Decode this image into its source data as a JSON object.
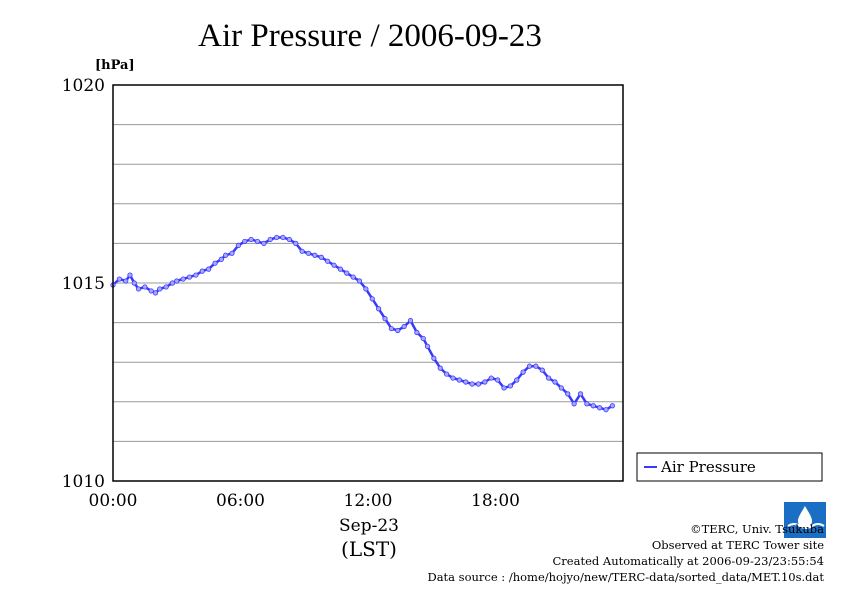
{
  "chart_data": {
    "type": "line",
    "title": "Air Pressure / 2006-09-23",
    "ylabel": "[hPa]",
    "xlabel": "Sep-23",
    "xlabel2": "(LST)",
    "ylim": [
      1010,
      1020
    ],
    "xlim": [
      0,
      24
    ],
    "yticks": [
      "1010",
      "1015",
      "1020"
    ],
    "xticks": [
      {
        "x": 0,
        "label": "00:00"
      },
      {
        "x": 6,
        "label": "06:00"
      },
      {
        "x": 12,
        "label": "12:00"
      },
      {
        "x": 18,
        "label": "18:00"
      }
    ],
    "grid": true,
    "legend_position": "right",
    "series": [
      {
        "name": "Air Pressure",
        "color": "#3a3aff",
        "x": [
          0.0,
          0.3,
          0.6,
          0.8,
          1.0,
          1.2,
          1.5,
          1.8,
          2.0,
          2.2,
          2.5,
          2.8,
          3.0,
          3.3,
          3.6,
          3.9,
          4.2,
          4.5,
          4.8,
          5.1,
          5.3,
          5.6,
          5.9,
          6.2,
          6.5,
          6.8,
          7.1,
          7.4,
          7.7,
          8.0,
          8.3,
          8.6,
          8.9,
          9.2,
          9.5,
          9.8,
          10.1,
          10.4,
          10.7,
          11.0,
          11.3,
          11.6,
          11.9,
          12.2,
          12.5,
          12.8,
          13.1,
          13.4,
          13.7,
          14.0,
          14.3,
          14.6,
          14.8,
          15.1,
          15.4,
          15.7,
          16.0,
          16.3,
          16.6,
          16.9,
          17.2,
          17.5,
          17.8,
          18.1,
          18.4,
          18.7,
          19.0,
          19.3,
          19.6,
          19.9,
          20.2,
          20.5,
          20.8,
          21.1,
          21.4,
          21.7,
          22.0,
          22.3,
          22.6,
          22.9,
          23.2,
          23.5
        ],
        "values": [
          1014.95,
          1015.1,
          1015.05,
          1015.2,
          1015.0,
          1014.85,
          1014.9,
          1014.8,
          1014.75,
          1014.85,
          1014.9,
          1015.0,
          1015.05,
          1015.1,
          1015.15,
          1015.2,
          1015.3,
          1015.35,
          1015.5,
          1015.6,
          1015.7,
          1015.75,
          1015.95,
          1016.05,
          1016.1,
          1016.05,
          1016.0,
          1016.1,
          1016.15,
          1016.15,
          1016.1,
          1016.0,
          1015.8,
          1015.75,
          1015.7,
          1015.65,
          1015.55,
          1015.45,
          1015.35,
          1015.25,
          1015.15,
          1015.05,
          1014.85,
          1014.6,
          1014.35,
          1014.1,
          1013.85,
          1013.8,
          1013.9,
          1014.05,
          1013.75,
          1013.6,
          1013.4,
          1013.1,
          1012.85,
          1012.7,
          1012.6,
          1012.55,
          1012.5,
          1012.45,
          1012.45,
          1012.5,
          1012.6,
          1012.55,
          1012.35,
          1012.4,
          1012.55,
          1012.75,
          1012.9,
          1012.9,
          1012.8,
          1012.6,
          1012.5,
          1012.35,
          1012.2,
          1011.95,
          1012.2,
          1011.95,
          1011.9,
          1011.85,
          1011.8,
          1011.9
        ]
      }
    ]
  },
  "credits": {
    "copyright": "©TERC, Univ. Tsukuba",
    "observed": "Observed at TERC Tower site",
    "created": "Created Automatically at 2006-09-23/23:55:54",
    "source": "Data source : /home/hojyo/new/TERC-data/sorted_data/MET.10s.dat",
    "logo_text": "TERC"
  }
}
